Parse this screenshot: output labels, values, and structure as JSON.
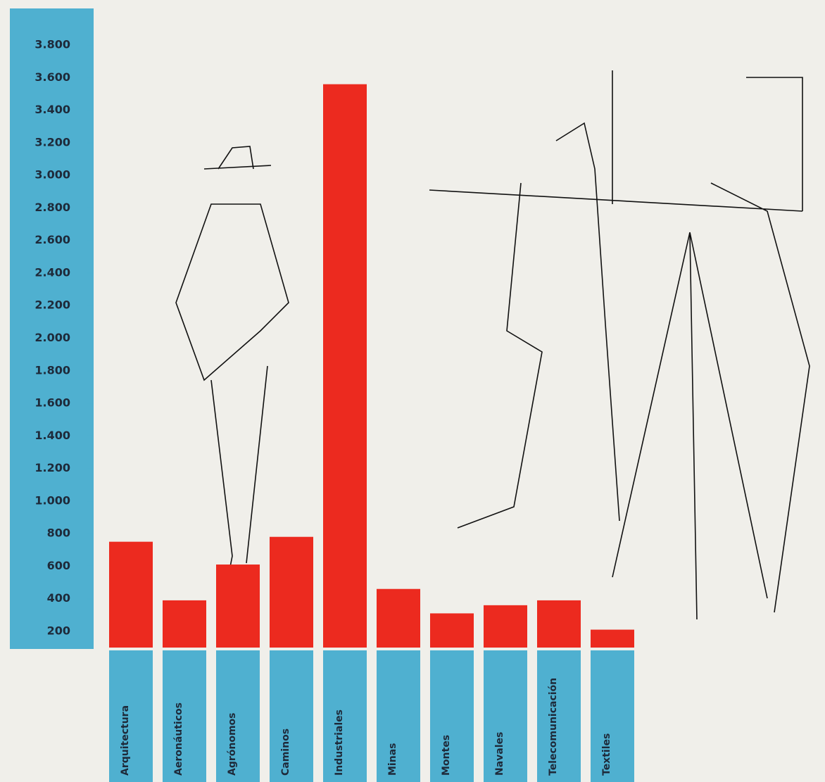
{
  "chart_data": {
    "type": "bar",
    "categories": [
      "Arquitectura",
      "Aeronáuticos",
      "Agrónomos",
      "Caminos",
      "Industriales",
      "Minas",
      "Montes",
      "Navales",
      "Telecomunicación",
      "Textiles"
    ],
    "values": [
      750,
      390,
      610,
      780,
      3560,
      460,
      310,
      360,
      390,
      210
    ],
    "color": "#ec2a1f",
    "axis_color": "#4fb0d0",
    "ylim": [
      100,
      3900
    ],
    "yticks": [
      200,
      400,
      600,
      800,
      {
        "value": 1000,
        "label": "1.000"
      },
      {
        "value": 1200,
        "label": "1.200"
      },
      {
        "value": 1400,
        "label": "1.400"
      },
      {
        "value": 1600,
        "label": "1.600"
      },
      {
        "value": 1800,
        "label": "1.800"
      },
      {
        "value": 2000,
        "label": "2.000"
      },
      {
        "value": 2200,
        "label": "2.200"
      },
      {
        "value": 2400,
        "label": "2.400"
      },
      {
        "value": 2600,
        "label": "2.600"
      },
      {
        "value": 2800,
        "label": "2.800"
      },
      {
        "value": 3000,
        "label": "3.000"
      },
      {
        "value": 3200,
        "label": "3.200"
      },
      {
        "value": 3400,
        "label": "3.400"
      },
      {
        "value": 3600,
        "label": "3.600"
      },
      {
        "value": 3800,
        "label": "3.800"
      }
    ],
    "grid": false
  }
}
